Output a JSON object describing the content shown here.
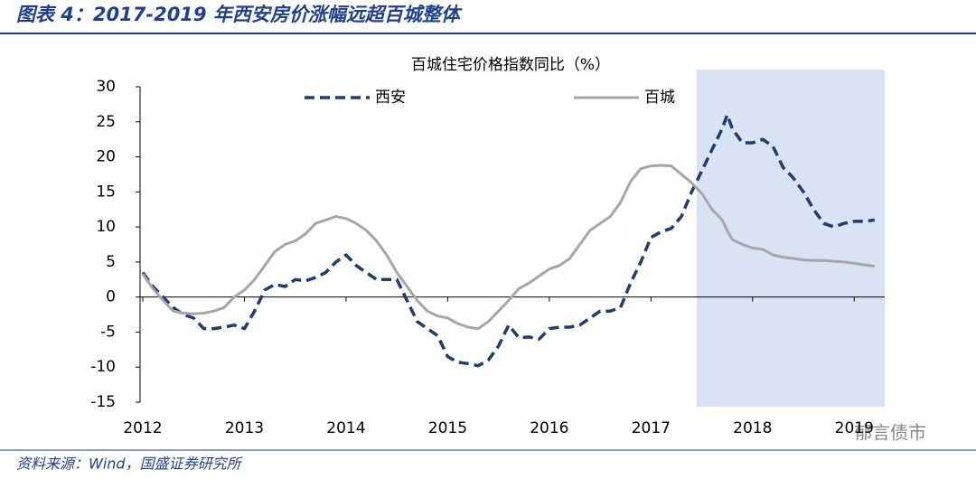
{
  "header": {
    "title": "图表 4：2017-2019 年西安房价涨幅远超百城整体"
  },
  "footer": {
    "source": "资料来源：Wind，国盛证券研究所",
    "watermark": "郁言债市"
  },
  "chart_data": {
    "type": "line",
    "title": "百城住宅价格指数同比（%）",
    "x": [
      2012,
      2012.1,
      2012.2,
      2012.3,
      2012.4,
      2012.5,
      2012.6,
      2012.7,
      2012.8,
      2012.9,
      2013,
      2013.1,
      2013.2,
      2013.3,
      2013.4,
      2013.5,
      2013.6,
      2013.7,
      2013.8,
      2013.9,
      2014,
      2014.1,
      2014.2,
      2014.3,
      2014.4,
      2014.5,
      2014.6,
      2014.7,
      2014.8,
      2014.9,
      2015,
      2015.1,
      2015.2,
      2015.3,
      2015.4,
      2015.5,
      2015.6,
      2015.7,
      2015.8,
      2015.9,
      2016,
      2016.1,
      2016.2,
      2016.3,
      2016.4,
      2016.5,
      2016.6,
      2016.7,
      2016.8,
      2016.9,
      2017,
      2017.1,
      2017.2,
      2017.3,
      2017.4,
      2017.5,
      2017.6,
      2017.7,
      2017.75,
      2017.8,
      2017.9,
      2018,
      2018.1,
      2018.2,
      2018.3,
      2018.4,
      2018.5,
      2018.6,
      2018.7,
      2018.8,
      2018.9,
      2019,
      2019.1,
      2019.2
    ],
    "series": [
      {
        "name": "西安",
        "color": "#1f3d6e",
        "dashed": true,
        "values": [
          3.5,
          1.5,
          0,
          -1.5,
          -2.5,
          -3,
          -4.5,
          -4.5,
          -4.3,
          -4,
          -4.5,
          -2,
          1,
          1.8,
          1.5,
          2.5,
          2.3,
          2.8,
          3.5,
          5,
          6,
          4.5,
          3.5,
          2.5,
          2.5,
          2.5,
          -0.5,
          -3.5,
          -4.5,
          -5.5,
          -8.5,
          -9.3,
          -9.5,
          -9.8,
          -9,
          -7,
          -4,
          -5.8,
          -5.7,
          -6,
          -4.5,
          -4.3,
          -4.3,
          -4,
          -3,
          -2,
          -2,
          -1.5,
          2,
          5,
          8.5,
          9.3,
          9.8,
          11.5,
          15,
          18,
          21,
          24,
          26,
          24,
          22,
          22,
          22.5,
          21.5,
          18.5,
          17,
          15,
          12.5,
          10.5,
          10,
          10.5,
          10.8,
          10.8,
          11
        ]
      },
      {
        "name": "百城",
        "color": "#a6a6a6",
        "dashed": false,
        "values": [
          3.3,
          1.2,
          -0.5,
          -2,
          -2.3,
          -2.4,
          -2.3,
          -2,
          -1.5,
          0,
          1,
          2.5,
          4.5,
          6.5,
          7.5,
          8,
          9,
          10.5,
          11,
          11.5,
          11.2,
          10.5,
          9.5,
          8,
          6,
          3.5,
          1.5,
          -0.5,
          -2,
          -2.7,
          -3,
          -3.8,
          -4.3,
          -4.5,
          -3.5,
          -2,
          -0.5,
          1.2,
          2,
          3,
          4,
          4.5,
          5.5,
          7.5,
          9.5,
          10.5,
          11.5,
          13.5,
          16.5,
          18.3,
          18.7,
          18.8,
          18.7,
          17.5,
          16.3,
          14.8,
          12.5,
          11,
          9.5,
          8.2,
          7.5,
          7,
          6.8,
          6,
          5.7,
          5.5,
          5.3,
          5.2,
          5.2,
          5.1,
          5,
          4.8,
          4.6,
          4.4
        ]
      }
    ],
    "highlight": [
      2017.45,
      2019.3
    ],
    "highlight_color": "#dae3f3",
    "xlim": [
      2012,
      2019.3
    ],
    "xticks": [
      2012,
      2013,
      2014,
      2015,
      2016,
      2017,
      2018,
      2019
    ],
    "ylim": [
      -15,
      30
    ],
    "yticks": [
      -15,
      -10,
      -5,
      0,
      5,
      10,
      15,
      20,
      25,
      30
    ]
  }
}
